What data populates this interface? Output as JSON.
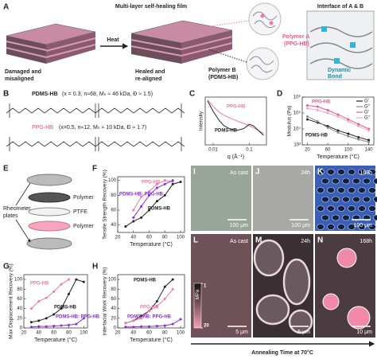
{
  "panel_labels": [
    "A",
    "B",
    "C",
    "D",
    "E",
    "F",
    "G",
    "H",
    "I",
    "J",
    "K",
    "L",
    "M",
    "N"
  ],
  "figure_a": {
    "title": "Multi-layer self-healing film",
    "damaged": [
      "Damaged and",
      "misaligned"
    ],
    "heat": "Heat",
    "healed": [
      "Healed and",
      "re-aligned"
    ],
    "polymer_a": [
      "Polymer A",
      "(PPG-HB)"
    ],
    "polymer_b": [
      "Polymer B",
      "(PDMS-HB)"
    ],
    "interface": "Interface of A & B",
    "dynamic_bond": [
      "Dynamic",
      "Bond"
    ]
  },
  "figure_b": {
    "pdms": {
      "name": "PDMS-HB",
      "details": "(x = 0.3, n≈68, Mₙ ≈ 46 kDa, Đ ≈ 1.5)"
    },
    "ppg": {
      "name": "PPG-HB",
      "details": "(x=0.5, n≈12, Mₙ ≈ 10 kDa, Đ ≈ 1.7)"
    }
  },
  "figure_e": {
    "rheometer": [
      "Rheometer",
      "plates"
    ],
    "layers": [
      "Polymer",
      "PTFE",
      "Polymer"
    ]
  },
  "micrographs": [
    {
      "time": "As cast",
      "scale": "100 μm"
    },
    {
      "time": "24h",
      "scale": "100 μm"
    },
    {
      "time": "168h",
      "scale": "100 μm"
    },
    {
      "time": "As cast",
      "scale": "5 μm"
    },
    {
      "time": "24h",
      "scale": "5 μm"
    },
    {
      "time": "168h",
      "scale": "10 μm"
    }
  ],
  "colorbar": {
    "unit": "MPa",
    "ticks": [
      1,
      20
    ]
  },
  "annealing": "Annealing Time at 70°C",
  "chart_data": [
    {
      "type": "line",
      "xlabel": "q (Å⁻¹)",
      "ylabel": "Intensity",
      "xscale": "log",
      "xlim": [
        0.006,
        0.3
      ],
      "xticks": [
        0.01,
        0.1
      ],
      "ylim": [
        0,
        10
      ],
      "x": [
        0.007,
        0.01,
        0.015,
        0.02,
        0.03,
        0.04,
        0.05,
        0.07,
        0.1,
        0.13,
        0.18,
        0.25
      ],
      "series": [
        {
          "name": "PPG-HB",
          "color": "#f07aa0",
          "values": [
            9.5,
            8,
            6.8,
            6.2,
            5.6,
            5.2,
            4.9,
            4.5,
            4.0,
            3.6,
            3.0,
            2.4
          ]
        },
        {
          "name": "PDMS-HB",
          "color": "#222222",
          "values": [
            9.2,
            7,
            5,
            4,
            3.3,
            3.1,
            3.1,
            3.4,
            4.3,
            4.0,
            3.0,
            2.0
          ]
        }
      ]
    },
    {
      "type": "line",
      "xlabel": "Temperature (°C)",
      "ylabel": "Modulus (Pa)",
      "xlim": [
        10,
        150
      ],
      "xticks": [
        20,
        60,
        100,
        140
      ],
      "yscale": "log",
      "ylim": [
        1000,
        1000000
      ],
      "yticks": [
        {
          "value": 1000,
          "label": "10³"
        },
        {
          "value": 10000,
          "label": "10⁴"
        },
        {
          "value": 100000,
          "label": "10⁵"
        },
        {
          "value": 1000000,
          "label": "10⁶"
        }
      ],
      "legend": "upper right",
      "annotations": [
        "PPG-HB",
        "PDMS-HB"
      ],
      "x": [
        20,
        40,
        60,
        80,
        100,
        120,
        140
      ],
      "series": [
        {
          "name": "G'",
          "color": "#222222",
          "values": [
            40000,
            25000,
            15000,
            8000,
            5000,
            3000,
            2000
          ]
        },
        {
          "name": "G''",
          "color": "#888888",
          "values": [
            60000,
            30000,
            12000,
            6000,
            3500,
            2200,
            1500
          ]
        },
        {
          "name": "G'",
          "color": "#e85a8a",
          "values": [
            300000,
            250000,
            150000,
            80000,
            40000,
            20000,
            10000
          ]
        },
        {
          "name": "G''",
          "color": "#f4a6c0",
          "values": [
            200000,
            150000,
            100000,
            60000,
            30000,
            15000,
            8000
          ]
        }
      ]
    },
    {
      "type": "line",
      "xlabel": "Temperature (°C)",
      "ylabel": "Tensile Strength Recovery (%)",
      "xlim": [
        20,
        105
      ],
      "xticks": [
        20,
        40,
        60,
        80,
        100
      ],
      "ylim": [
        30,
        105
      ],
      "yticks": [
        40,
        60,
        80,
        100
      ],
      "x": [
        30,
        40,
        50,
        60,
        70,
        80,
        90,
        100
      ],
      "series": [
        {
          "name": "PDMS-HB",
          "color": "#222222",
          "values": [
            38,
            45,
            50,
            60,
            72,
            80,
            95,
            98
          ]
        },
        {
          "name": "PPG-HB",
          "color": "#f07aa0",
          "values": [
            null,
            60,
            78,
            85,
            95,
            100,
            98,
            null
          ]
        },
        {
          "name": "PDMS-HB: PPG-HB",
          "color": "#8a2be2",
          "values": [
            null,
            50,
            65,
            80,
            90,
            95,
            100,
            null
          ]
        }
      ]
    },
    {
      "type": "line",
      "xlabel": "Temperature (°C)",
      "ylabel": "Max Displacement Recovery (%)",
      "xlim": [
        20,
        105
      ],
      "xticks": [
        20,
        40,
        60,
        80,
        100
      ],
      "ylim": [
        0,
        110
      ],
      "yticks": [
        0,
        20,
        40,
        60,
        80,
        100
      ],
      "x": [
        30,
        40,
        50,
        60,
        70,
        80,
        90,
        100
      ],
      "series": [
        {
          "name": "PPG-HB",
          "color": "#f07aa0",
          "values": [
            40,
            55,
            62,
            75,
            90,
            100,
            null,
            null
          ]
        },
        {
          "name": "PDMS-HB",
          "color": "#222222",
          "values": [
            12,
            15,
            20,
            28,
            40,
            70,
            100,
            95
          ]
        },
        {
          "name": "PDMS-HB: PPG-HB",
          "color": "#8a2be2",
          "values": [
            2,
            3,
            3,
            4,
            5,
            6,
            8,
            20
          ]
        }
      ]
    },
    {
      "type": "line",
      "xlabel": "Temperature (°C)",
      "ylabel": "Interfacial Work Recovery (%)",
      "xlim": [
        20,
        105
      ],
      "xticks": [
        20,
        40,
        60,
        80,
        100
      ],
      "ylim": [
        0,
        110
      ],
      "yticks": [
        0,
        20,
        40,
        60,
        80,
        100
      ],
      "x": [
        30,
        40,
        50,
        60,
        70,
        80,
        90,
        100
      ],
      "series": [
        {
          "name": "PDMS-HB",
          "color": "#222222",
          "values": [
            10,
            15,
            25,
            35,
            55,
            85,
            100,
            null
          ]
        },
        {
          "name": "PPG-HB",
          "color": "#f07aa0",
          "values": [
            10,
            15,
            20,
            35,
            45,
            60,
            80,
            null
          ]
        },
        {
          "name": "PDMS-HB: PPG-HB",
          "color": "#8a2be2",
          "values": [
            2,
            2,
            3,
            3,
            4,
            5,
            8,
            18
          ]
        }
      ]
    }
  ]
}
